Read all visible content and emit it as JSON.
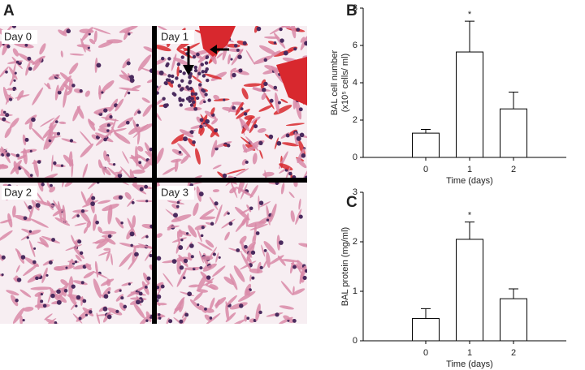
{
  "panel_a": {
    "label": "A",
    "images": [
      "Day 0",
      "Day 1",
      "Day 2",
      "Day 3"
    ]
  },
  "chart_data": [
    {
      "type": "bar",
      "panel_label": "B",
      "ylabel": [
        "BAL cell number",
        "(x10⁵ cells/ ml)"
      ],
      "xlabel": "Time (days)",
      "categories": [
        "0",
        "1",
        "2"
      ],
      "values": [
        1.3,
        5.65,
        2.6
      ],
      "errors": [
        0.2,
        1.65,
        0.9
      ],
      "color": "#ffffff",
      "ylim": [
        0,
        8
      ],
      "yticks": [
        0,
        2,
        4,
        6,
        8
      ],
      "annotations": [
        {
          "text": "*",
          "category": 1
        }
      ]
    },
    {
      "type": "bar",
      "panel_label": "C",
      "ylabel": [
        "BAL protein (mg/ml)"
      ],
      "xlabel": "Time (days)",
      "categories": [
        "0",
        "1",
        "2"
      ],
      "values": [
        0.45,
        2.05,
        0.85
      ],
      "errors": [
        0.2,
        0.35,
        0.2
      ],
      "color": "#ffffff",
      "ylim": [
        0,
        3
      ],
      "yticks": [
        0,
        1,
        2,
        3
      ],
      "annotations": [
        {
          "text": "*",
          "category": 1
        }
      ]
    }
  ]
}
